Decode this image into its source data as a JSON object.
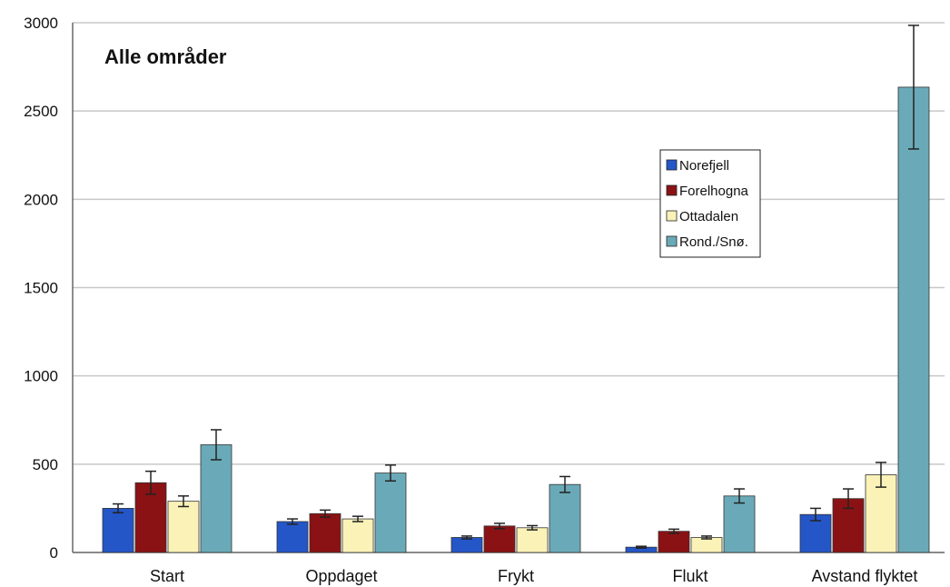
{
  "chart_data": {
    "type": "bar",
    "title": "Alle områder",
    "xlabel": "",
    "ylabel": "",
    "ylim": [
      0,
      3000
    ],
    "yticks": [
      0,
      500,
      1000,
      1500,
      2000,
      2500,
      3000
    ],
    "grid": true,
    "legend_position": "right",
    "categories": [
      "Start",
      "Oppdaget",
      "Frykt",
      "Flukt",
      "Avstand flyktet"
    ],
    "series": [
      {
        "name": "Norefjell",
        "color": "#2456c8",
        "values": [
          250,
          175,
          85,
          30,
          215
        ],
        "errors": [
          25,
          15,
          8,
          5,
          35
        ]
      },
      {
        "name": "Forelhogna",
        "color": "#8b1214",
        "values": [
          395,
          220,
          150,
          120,
          305
        ],
        "errors": [
          65,
          20,
          15,
          12,
          55
        ]
      },
      {
        "name": "Ottadalen",
        "color": "#fbf2b8",
        "values": [
          290,
          190,
          140,
          85,
          440
        ],
        "errors": [
          30,
          15,
          12,
          8,
          70
        ]
      },
      {
        "name": "Rond./Snø.",
        "color": "#6aaab8",
        "values": [
          610,
          450,
          385,
          320,
          2635
        ],
        "errors": [
          85,
          45,
          45,
          40,
          350
        ]
      }
    ]
  }
}
